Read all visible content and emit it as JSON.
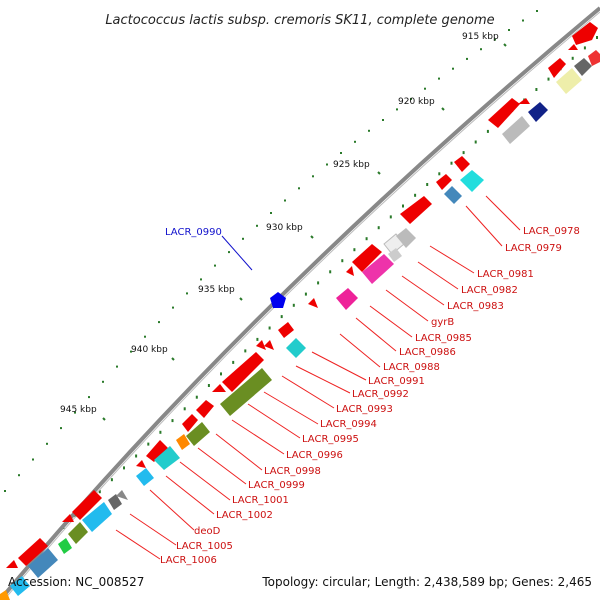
{
  "title": "Lactococcus lactis subsp. cremoris SK11, complete genome",
  "footer": {
    "accession": "Accession: NC_008527",
    "topology": "Topology: circular; Length: 2,438,589 bp; Genes: 2,465"
  },
  "colors": {
    "backbone": "#777777",
    "label_line": "#ee2222",
    "highlight": "#1111cc",
    "tick": "#2a7a2a",
    "gene_default": "#ee0000"
  },
  "scale": [
    {
      "label": "915 kbp"
    },
    {
      "label": "920 kbp"
    },
    {
      "label": "925 kbp"
    },
    {
      "label": "930 kbp"
    },
    {
      "label": "935 kbp"
    },
    {
      "label": "940 kbp"
    },
    {
      "label": "945 kbp"
    }
  ],
  "highlighted": {
    "label": "LACR_0990"
  },
  "gene_labels": [
    {
      "label": "LACR_0978"
    },
    {
      "label": "LACR_0979"
    },
    {
      "label": "LACR_0981"
    },
    {
      "label": "LACR_0982"
    },
    {
      "label": "LACR_0983"
    },
    {
      "label": "gyrB"
    },
    {
      "label": "LACR_0985"
    },
    {
      "label": "LACR_0986"
    },
    {
      "label": "LACR_0988"
    },
    {
      "label": "LACR_0991"
    },
    {
      "label": "LACR_0992"
    },
    {
      "label": "LACR_0993"
    },
    {
      "label": "LACR_0994"
    },
    {
      "label": "LACR_0995"
    },
    {
      "label": "LACR_0996"
    },
    {
      "label": "LACR_0998"
    },
    {
      "label": "LACR_0999"
    },
    {
      "label": "LACR_1001"
    },
    {
      "label": "LACR_1002"
    },
    {
      "label": "deoD"
    },
    {
      "label": "LACR_1005"
    },
    {
      "label": "LACR_1006"
    }
  ]
}
